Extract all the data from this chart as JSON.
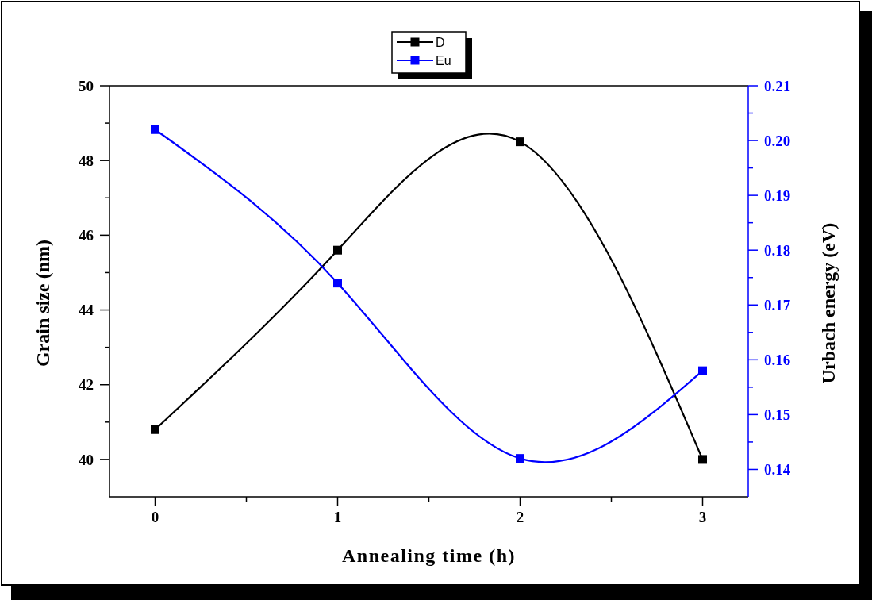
{
  "chart_data": {
    "type": "line",
    "xlabel": "Annealing time (h)",
    "ylabel": "Grain size (nm)",
    "y2label": "Urbach energy (eV)",
    "x": [
      0,
      1,
      2,
      3
    ],
    "series": [
      {
        "name": "D",
        "color": "#000000",
        "values": [
          40.8,
          45.6,
          48.5,
          40
        ]
      },
      {
        "name": "Eu",
        "color": "#0000ff",
        "axis": "y2",
        "values": [
          0.202,
          0.174,
          0.142,
          0.158
        ]
      }
    ],
    "xlim": [
      -0.25,
      3.25
    ],
    "xticks": [
      0,
      {
        "value": 0.5,
        "label": null
      },
      1,
      {
        "value": 1.5,
        "label": null
      },
      2,
      {
        "value": 2.5,
        "label": null
      },
      3
    ],
    "ylim": [
      39,
      50
    ],
    "yticks": [
      40,
      {
        "value": 41,
        "label": null
      },
      42,
      {
        "value": 43,
        "label": null
      },
      44,
      {
        "value": 45,
        "label": null
      },
      46,
      {
        "value": 47,
        "label": null
      },
      48,
      {
        "value": 49,
        "label": null
      },
      50
    ],
    "y2lim": [
      0.135,
      0.21
    ],
    "y2ticks": [
      0.14,
      {
        "value": 0.145,
        "label": null
      },
      0.15,
      {
        "value": 0.155,
        "label": null
      },
      0.16,
      {
        "value": 0.165,
        "label": null
      },
      0.17,
      {
        "value": 0.175,
        "label": null
      },
      0.18,
      {
        "value": 0.185,
        "label": null
      },
      0.19,
      {
        "value": 0.195,
        "label": null
      },
      {
        "value": 0.2,
        "label": "0.20"
      },
      {
        "value": 0.205,
        "label": null
      },
      0.21
    ],
    "marker": "square",
    "line_style": "solid",
    "legend": "top"
  }
}
